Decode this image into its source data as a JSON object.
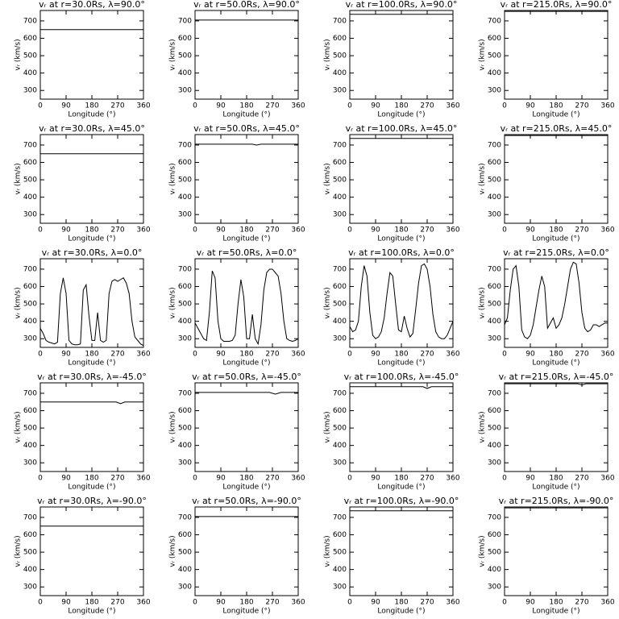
{
  "chart_data": [
    {
      "type": "line",
      "title": "vᵣ at r=30.0Rs, λ=90.0°",
      "x_label": "Longitude (°)",
      "y_label": "vᵣ (km/s)",
      "x": [
        0,
        360
      ],
      "values": [
        650,
        650
      ],
      "color": "#000000",
      "xlim": [
        0,
        360
      ],
      "ylim": [
        250,
        760
      ],
      "xticks": [
        0,
        90,
        180,
        270,
        360
      ],
      "yticks": [
        300,
        400,
        500,
        600,
        700
      ]
    },
    {
      "type": "line",
      "title": "vᵣ at r=50.0Rs, λ=90.0°",
      "x_label": "Longitude (°)",
      "y_label": "vᵣ (km/s)",
      "x": [
        0,
        360
      ],
      "values": [
        705,
        705
      ],
      "color": "#000000",
      "xlim": [
        0,
        360
      ],
      "ylim": [
        250,
        760
      ],
      "xticks": [
        0,
        90,
        180,
        270,
        360
      ],
      "yticks": [
        300,
        400,
        500,
        600,
        700
      ]
    },
    {
      "type": "line",
      "title": "vᵣ at r=100.0Rs, λ=90.0°",
      "x_label": "Longitude (°)",
      "y_label": "vᵣ (km/s)",
      "x": [
        0,
        360
      ],
      "values": [
        738,
        738
      ],
      "color": "#000000",
      "xlim": [
        0,
        360
      ],
      "ylim": [
        250,
        760
      ],
      "xticks": [
        0,
        90,
        180,
        270,
        360
      ],
      "yticks": [
        300,
        400,
        500,
        600,
        700
      ]
    },
    {
      "type": "line",
      "title": "vᵣ at r=215.0Rs, λ=90.0°",
      "x_label": "Longitude (°)",
      "y_label": "vᵣ (km/s)",
      "x": [
        0,
        360
      ],
      "values": [
        755,
        755
      ],
      "color": "#000000",
      "xlim": [
        0,
        360
      ],
      "ylim": [
        250,
        760
      ],
      "xticks": [
        0,
        90,
        180,
        270,
        360
      ],
      "yticks": [
        300,
        400,
        500,
        600,
        700
      ]
    },
    {
      "type": "line",
      "title": "vᵣ at r=30.0Rs, λ=45.0°",
      "x_label": "Longitude (°)",
      "y_label": "vᵣ (km/s)",
      "x": [
        0,
        360
      ],
      "values": [
        650,
        650
      ],
      "color": "#000000",
      "xlim": [
        0,
        360
      ],
      "ylim": [
        250,
        760
      ],
      "xticks": [
        0,
        90,
        180,
        270,
        360
      ],
      "yticks": [
        300,
        400,
        500,
        600,
        700
      ]
    },
    {
      "type": "line",
      "title": "vᵣ at r=50.0Rs, λ=45.0°",
      "x_label": "Longitude (°)",
      "y_label": "vᵣ (km/s)",
      "x": [
        0,
        200,
        215,
        230,
        360
      ],
      "values": [
        705,
        705,
        700,
        705,
        705
      ],
      "color": "#000000",
      "xlim": [
        0,
        360
      ],
      "ylim": [
        250,
        760
      ],
      "xticks": [
        0,
        90,
        180,
        270,
        360
      ],
      "yticks": [
        300,
        400,
        500,
        600,
        700
      ]
    },
    {
      "type": "line",
      "title": "vᵣ at r=100.0Rs, λ=45.0°",
      "x_label": "Longitude (°)",
      "y_label": "vᵣ (km/s)",
      "x": [
        0,
        360
      ],
      "values": [
        738,
        738
      ],
      "color": "#000000",
      "xlim": [
        0,
        360
      ],
      "ylim": [
        250,
        760
      ],
      "xticks": [
        0,
        90,
        180,
        270,
        360
      ],
      "yticks": [
        300,
        400,
        500,
        600,
        700
      ]
    },
    {
      "type": "line",
      "title": "vᵣ at r=215.0Rs, λ=45.0°",
      "x_label": "Longitude (°)",
      "y_label": "vᵣ (km/s)",
      "x": [
        0,
        360
      ],
      "values": [
        755,
        755
      ],
      "color": "#000000",
      "xlim": [
        0,
        360
      ],
      "ylim": [
        250,
        760
      ],
      "xticks": [
        0,
        90,
        180,
        270,
        360
      ],
      "yticks": [
        300,
        400,
        500,
        600,
        700
      ]
    },
    {
      "type": "line",
      "title": "vᵣ at r=30.0Rs, λ=0.0°",
      "x_label": "Longitude (°)",
      "y_label": "vᵣ (km/s)",
      "x": [
        0,
        10,
        20,
        30,
        40,
        50,
        60,
        70,
        80,
        90,
        100,
        110,
        120,
        130,
        140,
        150,
        160,
        170,
        180,
        190,
        200,
        210,
        220,
        230,
        240,
        250,
        260,
        270,
        280,
        290,
        300,
        310,
        320,
        330,
        340,
        350,
        360
      ],
      "values": [
        360,
        330,
        290,
        280,
        275,
        270,
        280,
        560,
        650,
        560,
        290,
        270,
        265,
        265,
        270,
        580,
        610,
        430,
        290,
        290,
        450,
        290,
        280,
        290,
        560,
        630,
        640,
        630,
        640,
        650,
        620,
        560,
        400,
        310,
        290,
        270,
        260
      ],
      "color": "#000000",
      "xlim": [
        0,
        360
      ],
      "ylim": [
        250,
        760
      ],
      "xticks": [
        0,
        90,
        180,
        270,
        360
      ],
      "yticks": [
        300,
        400,
        500,
        600,
        700
      ]
    },
    {
      "type": "line",
      "title": "vᵣ at r=50.0Rs, λ=0.0°",
      "x_label": "Longitude (°)",
      "y_label": "vᵣ (km/s)",
      "x": [
        0,
        10,
        20,
        30,
        40,
        50,
        60,
        70,
        80,
        90,
        100,
        110,
        120,
        130,
        140,
        150,
        160,
        170,
        180,
        190,
        200,
        210,
        220,
        230,
        240,
        250,
        260,
        270,
        280,
        290,
        300,
        310,
        320,
        330,
        340,
        350,
        360
      ],
      "values": [
        390,
        360,
        330,
        300,
        290,
        450,
        690,
        650,
        400,
        300,
        285,
        285,
        285,
        290,
        320,
        500,
        640,
        540,
        300,
        300,
        440,
        300,
        270,
        380,
        580,
        680,
        700,
        700,
        680,
        660,
        560,
        400,
        300,
        290,
        285,
        290,
        300
      ],
      "color": "#000000",
      "xlim": [
        0,
        360
      ],
      "ylim": [
        250,
        760
      ],
      "xticks": [
        0,
        90,
        180,
        270,
        360
      ],
      "yticks": [
        300,
        400,
        500,
        600,
        700
      ]
    },
    {
      "type": "line",
      "title": "vᵣ at r=100.0Rs, λ=0.0°",
      "x_label": "Longitude (°)",
      "y_label": "vᵣ (km/s)",
      "x": [
        0,
        10,
        20,
        30,
        40,
        50,
        60,
        70,
        80,
        90,
        100,
        110,
        120,
        130,
        140,
        150,
        160,
        170,
        180,
        190,
        200,
        210,
        220,
        230,
        240,
        250,
        260,
        270,
        280,
        290,
        300,
        310,
        320,
        330,
        340,
        350,
        360
      ],
      "values": [
        370,
        340,
        350,
        400,
        600,
        720,
        660,
        450,
        320,
        300,
        310,
        340,
        420,
        560,
        680,
        660,
        500,
        350,
        340,
        430,
        360,
        310,
        330,
        470,
        620,
        720,
        730,
        700,
        600,
        440,
        340,
        310,
        300,
        300,
        320,
        360,
        400
      ],
      "color": "#000000",
      "xlim": [
        0,
        360
      ],
      "ylim": [
        250,
        760
      ],
      "xticks": [
        0,
        90,
        180,
        270,
        360
      ],
      "yticks": [
        300,
        400,
        500,
        600,
        700
      ]
    },
    {
      "type": "line",
      "title": "vᵣ at r=215.0Rs, λ=0.0°",
      "x_label": "Longitude (°)",
      "y_label": "vᵣ (km/s)",
      "x": [
        0,
        10,
        20,
        30,
        40,
        50,
        60,
        70,
        80,
        90,
        100,
        110,
        120,
        130,
        140,
        150,
        160,
        170,
        180,
        190,
        200,
        210,
        220,
        230,
        240,
        250,
        260,
        270,
        280,
        290,
        300,
        310,
        320,
        330,
        340,
        350,
        360
      ],
      "values": [
        380,
        420,
        580,
        700,
        720,
        600,
        350,
        310,
        300,
        320,
        380,
        480,
        580,
        660,
        600,
        360,
        390,
        420,
        360,
        380,
        420,
        500,
        600,
        700,
        740,
        730,
        620,
        450,
        360,
        340,
        350,
        380,
        380,
        370,
        380,
        390,
        390
      ],
      "color": "#000000",
      "xlim": [
        0,
        360
      ],
      "ylim": [
        250,
        760
      ],
      "xticks": [
        0,
        90,
        180,
        270,
        360
      ],
      "yticks": [
        300,
        400,
        500,
        600,
        700
      ]
    },
    {
      "type": "line",
      "title": "vᵣ at r=30.0Rs, λ=-45.0°",
      "x_label": "Longitude (°)",
      "y_label": "vᵣ (km/s)",
      "x": [
        0,
        265,
        280,
        295,
        360
      ],
      "values": [
        650,
        650,
        640,
        650,
        650
      ],
      "color": "#000000",
      "xlim": [
        0,
        360
      ],
      "ylim": [
        250,
        760
      ],
      "xticks": [
        0,
        90,
        180,
        270,
        360
      ],
      "yticks": [
        300,
        400,
        500,
        600,
        700
      ]
    },
    {
      "type": "line",
      "title": "vᵣ at r=50.0Rs, λ=-45.0°",
      "x_label": "Longitude (°)",
      "y_label": "vᵣ (km/s)",
      "x": [
        0,
        260,
        280,
        300,
        360
      ],
      "values": [
        705,
        705,
        695,
        705,
        705
      ],
      "color": "#000000",
      "xlim": [
        0,
        360
      ],
      "ylim": [
        250,
        760
      ],
      "xticks": [
        0,
        90,
        180,
        270,
        360
      ],
      "yticks": [
        300,
        400,
        500,
        600,
        700
      ]
    },
    {
      "type": "line",
      "title": "vᵣ at r=100.0Rs, λ=-45.0°",
      "x_label": "Longitude (°)",
      "y_label": "vᵣ (km/s)",
      "x": [
        0,
        255,
        270,
        285,
        360
      ],
      "values": [
        738,
        738,
        728,
        738,
        738
      ],
      "color": "#000000",
      "xlim": [
        0,
        360
      ],
      "ylim": [
        250,
        760
      ],
      "xticks": [
        0,
        90,
        180,
        270,
        360
      ],
      "yticks": [
        300,
        400,
        500,
        600,
        700
      ]
    },
    {
      "type": "line",
      "title": "vᵣ at r=215.0Rs, λ=-45.0°",
      "x_label": "Longitude (°)",
      "y_label": "vᵣ (km/s)",
      "x": [
        0,
        255,
        270,
        285,
        360
      ],
      "values": [
        755,
        755,
        748,
        755,
        755
      ],
      "color": "#000000",
      "xlim": [
        0,
        360
      ],
      "ylim": [
        250,
        760
      ],
      "xticks": [
        0,
        90,
        180,
        270,
        360
      ],
      "yticks": [
        300,
        400,
        500,
        600,
        700
      ]
    },
    {
      "type": "line",
      "title": "vᵣ at r=30.0Rs, λ=-90.0°",
      "x_label": "Longitude (°)",
      "y_label": "vᵣ (km/s)",
      "x": [
        0,
        360
      ],
      "values": [
        650,
        650
      ],
      "color": "#000000",
      "xlim": [
        0,
        360
      ],
      "ylim": [
        250,
        760
      ],
      "xticks": [
        0,
        90,
        180,
        270,
        360
      ],
      "yticks": [
        300,
        400,
        500,
        600,
        700
      ]
    },
    {
      "type": "line",
      "title": "vᵣ at r=50.0Rs, λ=-90.0°",
      "x_label": "Longitude (°)",
      "y_label": "vᵣ (km/s)",
      "x": [
        0,
        360
      ],
      "values": [
        705,
        705
      ],
      "color": "#000000",
      "xlim": [
        0,
        360
      ],
      "ylim": [
        250,
        760
      ],
      "xticks": [
        0,
        90,
        180,
        270,
        360
      ],
      "yticks": [
        300,
        400,
        500,
        600,
        700
      ]
    },
    {
      "type": "line",
      "title": "vᵣ at r=100.0Rs, λ=-90.0°",
      "x_label": "Longitude (°)",
      "y_label": "vᵣ (km/s)",
      "x": [
        0,
        360
      ],
      "values": [
        738,
        738
      ],
      "color": "#000000",
      "xlim": [
        0,
        360
      ],
      "ylim": [
        250,
        760
      ],
      "xticks": [
        0,
        90,
        180,
        270,
        360
      ],
      "yticks": [
        300,
        400,
        500,
        600,
        700
      ]
    },
    {
      "type": "line",
      "title": "vᵣ at r=215.0Rs, λ=-90.0°",
      "x_label": "Longitude (°)",
      "y_label": "vᵣ (km/s)",
      "x": [
        0,
        360
      ],
      "values": [
        755,
        755
      ],
      "color": "#000000",
      "xlim": [
        0,
        360
      ],
      "ylim": [
        250,
        760
      ],
      "xticks": [
        0,
        90,
        180,
        270,
        360
      ],
      "yticks": [
        300,
        400,
        500,
        600,
        700
      ]
    }
  ]
}
